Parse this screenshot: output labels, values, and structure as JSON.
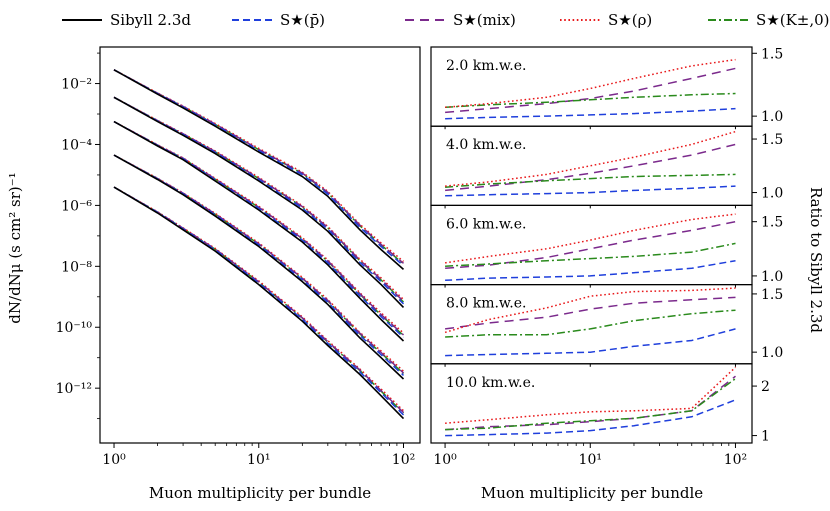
{
  "chart_data": {
    "type": "line",
    "x_scale": "log",
    "legend": {
      "placement": "top",
      "entries": [
        {
          "name": "Sibyll 2.3d",
          "label": "Sibyll 2.3d",
          "color": "#000000",
          "style": "solid"
        },
        {
          "name": "S*(pbar)",
          "label": "S★(p̄)",
          "color": "#1f3fdc",
          "style": "dashed"
        },
        {
          "name": "S*(mix)",
          "label": "S★(mix)",
          "color": "#7b2a8c",
          "style": "dashed-long"
        },
        {
          "name": "S*(rho)",
          "label": "S★(ρ)",
          "color": "#e8191b",
          "style": "dotted"
        },
        {
          "name": "S*(K)",
          "label": "S★(K±,0)",
          "color": "#2a8a1c",
          "style": "dashdot"
        }
      ]
    },
    "left_panel": {
      "xlabel": "Muon multiplicity per bundle",
      "ylabel": "dN/dNμ (s cm² sr)⁻¹",
      "x_ticks": [
        "10⁰",
        "10¹",
        "10²"
      ],
      "y_ticks": [
        "10⁻²",
        "10⁻⁴",
        "10⁻⁶",
        "10⁻⁸",
        "10⁻¹⁰",
        "10⁻¹²"
      ],
      "xlim": [
        0.8,
        130
      ],
      "ylim_log10": [
        -13.8,
        -0.8
      ],
      "note": "five depth curves, values given as log10 of flux at multiplicity x",
      "x": [
        1,
        2,
        3,
        5,
        10,
        20,
        30,
        50,
        70,
        100
      ],
      "curves": [
        {
          "depth": "2.0 km.w.e.",
          "log10_flux": [
            -1.55,
            -2.35,
            -2.8,
            -3.4,
            -4.25,
            -5.05,
            -5.7,
            -6.8,
            -7.45,
            -8.1
          ]
        },
        {
          "depth": "4.0 km.w.e.",
          "log10_flux": [
            -2.45,
            -3.25,
            -3.7,
            -4.3,
            -5.2,
            -6.15,
            -6.85,
            -7.95,
            -8.6,
            -9.35
          ]
        },
        {
          "depth": "6.0 km.w.e.",
          "log10_flux": [
            -3.25,
            -4.05,
            -4.5,
            -5.2,
            -6.15,
            -7.2,
            -7.95,
            -9.05,
            -9.75,
            -10.45
          ]
        },
        {
          "depth": "8.0 km.w.e.",
          "log10_flux": [
            -4.35,
            -5.15,
            -5.65,
            -6.35,
            -7.35,
            -8.5,
            -9.25,
            -10.35,
            -11.0,
            -11.7
          ]
        },
        {
          "depth": "10.0 km.w.e.",
          "log10_flux": [
            -5.4,
            -6.25,
            -6.8,
            -7.5,
            -8.6,
            -9.8,
            -10.6,
            -11.55,
            -12.25,
            -13.0
          ]
        }
      ]
    },
    "right_panel": {
      "xlabel": "Muon multiplicity per bundle",
      "ylabel": "Ratio to Sibyll 2.3d",
      "x_ticks": [
        "10⁰",
        "10¹",
        "10²"
      ],
      "xlim": [
        0.8,
        130
      ],
      "x": [
        1,
        2,
        5,
        10,
        20,
        50,
        100
      ],
      "subpanels": [
        {
          "label": "2.0 km.w.e.",
          "ylim": [
            0.92,
            1.55
          ],
          "y_ticks": [
            "1.0",
            "1.5"
          ],
          "y_tick_values": [
            1.0,
            1.5
          ],
          "pbar": [
            0.98,
            0.99,
            1.0,
            1.01,
            1.02,
            1.04,
            1.06
          ],
          "mix": [
            1.03,
            1.06,
            1.1,
            1.14,
            1.2,
            1.3,
            1.38
          ],
          "rho": [
            1.07,
            1.1,
            1.15,
            1.22,
            1.3,
            1.4,
            1.45
          ],
          "K": [
            1.07,
            1.09,
            1.11,
            1.13,
            1.15,
            1.17,
            1.18
          ]
        },
        {
          "label": "4.0 km.w.e.",
          "ylim": [
            0.88,
            1.62
          ],
          "y_ticks": [
            "1.0",
            "1.5"
          ],
          "y_tick_values": [
            1.0,
            1.5
          ],
          "pbar": [
            0.97,
            0.98,
            0.99,
            1.0,
            1.02,
            1.04,
            1.06
          ],
          "mix": [
            1.02,
            1.06,
            1.12,
            1.18,
            1.25,
            1.35,
            1.45
          ],
          "rho": [
            1.06,
            1.1,
            1.17,
            1.25,
            1.33,
            1.45,
            1.57
          ],
          "K": [
            1.05,
            1.08,
            1.11,
            1.13,
            1.15,
            1.16,
            1.17
          ]
        },
        {
          "label": "6.0 km.w.e.",
          "ylim": [
            0.92,
            1.65
          ],
          "y_ticks": [
            "1.0",
            "1.5"
          ],
          "y_tick_values": [
            1.0,
            1.5
          ],
          "pbar": [
            0.96,
            0.98,
            0.99,
            1.0,
            1.03,
            1.07,
            1.14
          ],
          "mix": [
            1.07,
            1.1,
            1.17,
            1.25,
            1.33,
            1.42,
            1.5
          ],
          "rho": [
            1.12,
            1.18,
            1.25,
            1.33,
            1.42,
            1.52,
            1.57
          ],
          "K": [
            1.09,
            1.11,
            1.14,
            1.16,
            1.18,
            1.22,
            1.3
          ]
        },
        {
          "label": "8.0 km.w.e.",
          "ylim": [
            0.9,
            1.58
          ],
          "y_ticks": [
            "1.0",
            "1.5"
          ],
          "y_tick_values": [
            1.0,
            1.5
          ],
          "pbar": [
            0.97,
            0.98,
            0.99,
            1.0,
            1.05,
            1.1,
            1.2
          ],
          "mix": [
            1.2,
            1.25,
            1.3,
            1.37,
            1.42,
            1.45,
            1.47
          ],
          "rho": [
            1.17,
            1.28,
            1.38,
            1.48,
            1.52,
            1.53,
            1.55
          ],
          "K": [
            1.13,
            1.15,
            1.15,
            1.2,
            1.27,
            1.33,
            1.36
          ]
        },
        {
          "label": "10.0 km.w.e.",
          "ylim": [
            0.85,
            2.45
          ],
          "y_ticks": [
            "1",
            "2"
          ],
          "y_tick_values": [
            1,
            2
          ],
          "pbar": [
            1.0,
            1.02,
            1.05,
            1.1,
            1.2,
            1.38,
            1.72
          ],
          "mix": [
            1.12,
            1.18,
            1.22,
            1.28,
            1.35,
            1.5,
            2.2
          ],
          "rho": [
            1.25,
            1.32,
            1.42,
            1.48,
            1.5,
            1.55,
            2.38
          ],
          "K": [
            1.12,
            1.15,
            1.25,
            1.3,
            1.35,
            1.5,
            2.15
          ]
        }
      ]
    }
  }
}
